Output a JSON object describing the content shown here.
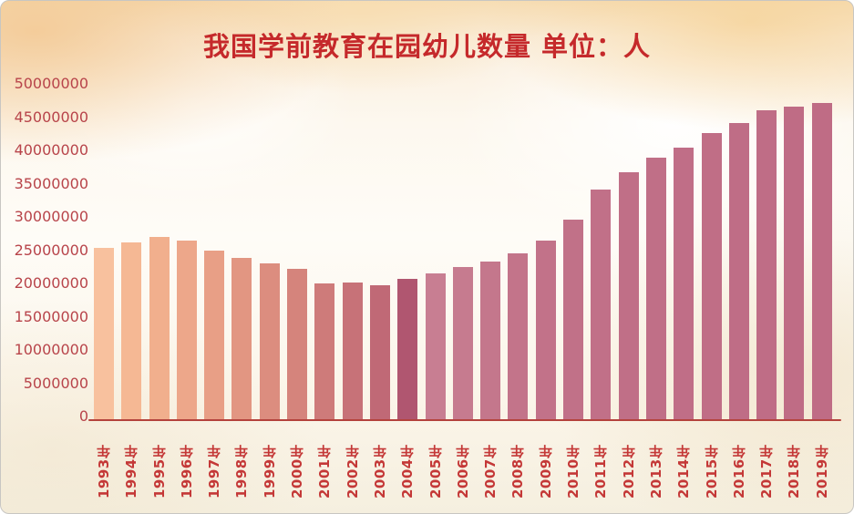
{
  "page": {
    "kind": "presentation-slide-bar-chart"
  },
  "chart_data": {
    "type": "bar",
    "title": "我国学前教育在园幼儿数量 单位：人",
    "xlabel": "",
    "ylabel": "",
    "categories": [
      "1993年",
      "1994年",
      "1995年",
      "1996年",
      "1997年",
      "1998年",
      "1999年",
      "2000年",
      "2001年",
      "2002年",
      "2003年",
      "2004年",
      "2005年",
      "2006年",
      "2007年",
      "2008年",
      "2009年",
      "2010年",
      "2011年",
      "2012年",
      "2013年",
      "2014年",
      "2015年",
      "2016年",
      "2017年",
      "2018年",
      "2019年"
    ],
    "values": [
      25523000,
      26303000,
      27112000,
      26663000,
      25190000,
      24030000,
      23263000,
      22442000,
      20218000,
      20360000,
      20039000,
      20894000,
      21790000,
      22639000,
      23488000,
      24750000,
      26578000,
      29767000,
      34245000,
      36858000,
      38947000,
      40507000,
      42648000,
      44139000,
      46001000,
      46564000,
      47139000
    ],
    "ylim": [
      0,
      50000000
    ],
    "yticks": [
      0,
      5000000,
      10000000,
      15000000,
      20000000,
      25000000,
      30000000,
      35000000,
      40000000,
      45000000,
      50000000
    ],
    "grid": false,
    "legend": null,
    "bar_colors": [
      "#F8C19E",
      "#F5B894",
      "#F1AF8D",
      "#EDA78A",
      "#E89F86",
      "#E29682",
      "#DC8D7F",
      "#D5847C",
      "#CE7B7A",
      "#C77278",
      "#C06976",
      "#B05670",
      "#C87E92",
      "#C67B8F",
      "#C4778C",
      "#C3748A",
      "#C27289",
      "#C17188",
      "#C17088",
      "#C06F87",
      "#C06F87",
      "#C06E87",
      "#C06E86",
      "#BF6D86",
      "#BF6D86",
      "#BF6C85",
      "#BF6C85"
    ],
    "colors": {
      "title": "#C5292B",
      "axis_line": "#B4423C",
      "y_tick_label": "#B8444A",
      "x_tick_label": "#C43837"
    }
  }
}
